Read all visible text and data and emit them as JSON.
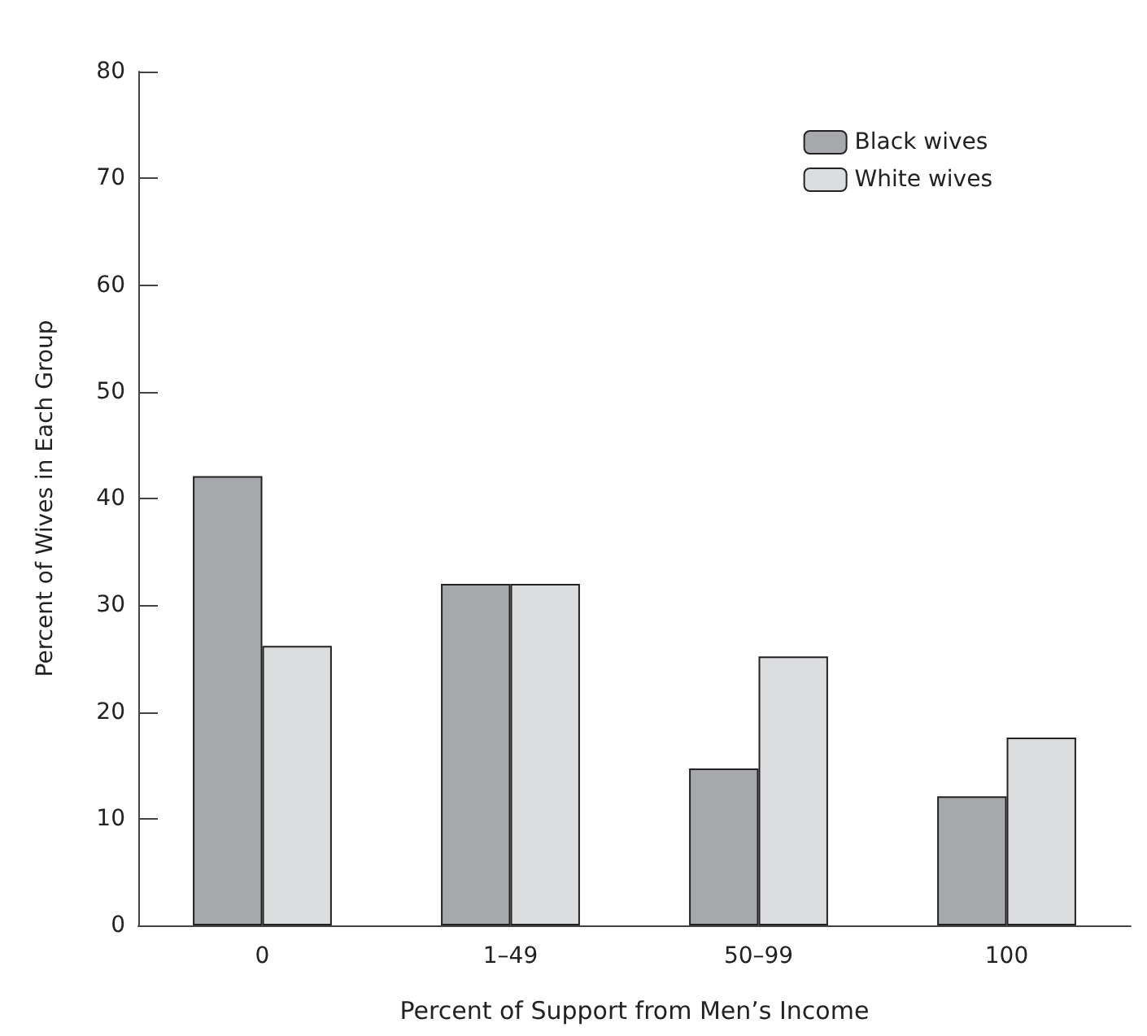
{
  "chart_data": {
    "type": "bar",
    "xlabel": "Percent of Support from Men’s Income",
    "ylabel": "Percent of Wives in Each Group",
    "categories": [
      "0",
      "1–49",
      "50–99",
      "100"
    ],
    "series": [
      {
        "name": "Black wives",
        "color": "#a7a8ac",
        "values": [
          42.1,
          32,
          14.7,
          12.1
        ]
      },
      {
        "name": "White wives",
        "color": "#dcdddf",
        "values": [
          26.2,
          32,
          25.2,
          17.6
        ]
      }
    ],
    "ylim": [
      0,
      80
    ],
    "yticks": [
      0,
      10,
      20,
      30,
      40,
      50,
      60,
      70,
      80
    ],
    "grid": false,
    "legend": "top right"
  }
}
